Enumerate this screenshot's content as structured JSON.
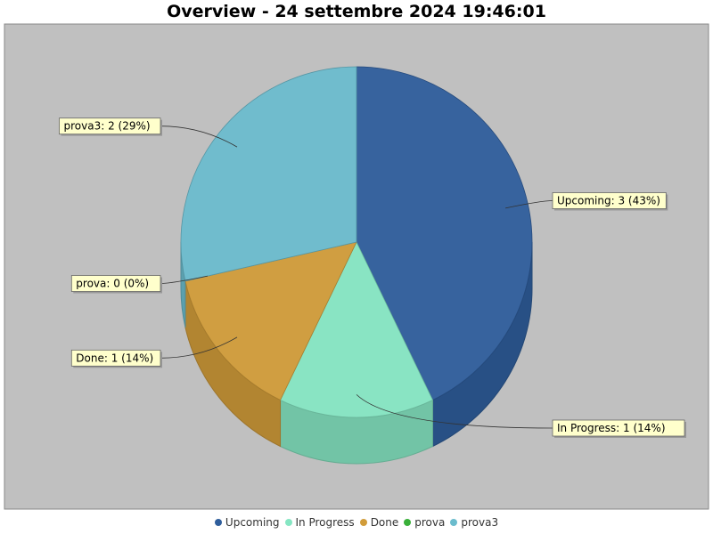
{
  "chart_data": {
    "type": "pie",
    "title": "Overview - 24 settembre 2024 19:46:01",
    "slices": [
      {
        "name": "Upcoming",
        "value": 3,
        "percent": "43%",
        "label": "Upcoming: 3 (43%)",
        "color": "#2f5e9c"
      },
      {
        "name": "In Progress",
        "value": 1,
        "percent": "14%",
        "label": "In Progress: 1 (14%)",
        "color": "#86e6c3"
      },
      {
        "name": "Done",
        "value": 1,
        "percent": "14%",
        "label": "Done: 1 (14%)",
        "color": "#d19c3a"
      },
      {
        "name": "prova",
        "value": 0,
        "percent": "0%",
        "label": "prova: 0 (0%)",
        "color": "#3ab03a"
      },
      {
        "name": "prova3",
        "value": 2,
        "percent": "29%",
        "label": "prova3: 2 (29%)",
        "color": "#6bbccd"
      }
    ],
    "legend_position": "bottom",
    "plot_background": "#c0c0c0",
    "label_background": "#ffffcc",
    "style": "3d"
  }
}
